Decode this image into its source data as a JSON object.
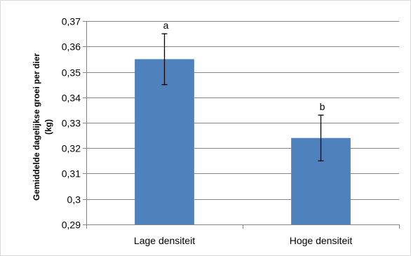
{
  "chart_data": {
    "type": "bar",
    "categories": [
      "Lage densiteit",
      "Hoge densiteit"
    ],
    "values": [
      0.355,
      0.324
    ],
    "error_bars": [
      0.01,
      0.009
    ],
    "significance_labels": [
      "a",
      "b"
    ],
    "title": "",
    "xlabel": "",
    "ylabel_lines": [
      "Gemiddelde dagelijkse groei per dier",
      "(kg)"
    ],
    "ylim": [
      0.29,
      0.37
    ],
    "yticks": [
      0.29,
      0.3,
      0.31,
      0.32,
      0.33,
      0.34,
      0.35,
      0.36,
      0.37
    ],
    "ytick_labels": [
      "0,29",
      "0,3",
      "0,31",
      "0,32",
      "0,33",
      "0,34",
      "0,35",
      "0,36",
      "0,37"
    ],
    "grid": true,
    "legend": "none",
    "bar_color": "#4f81bd",
    "gridline_color": "#868686"
  }
}
